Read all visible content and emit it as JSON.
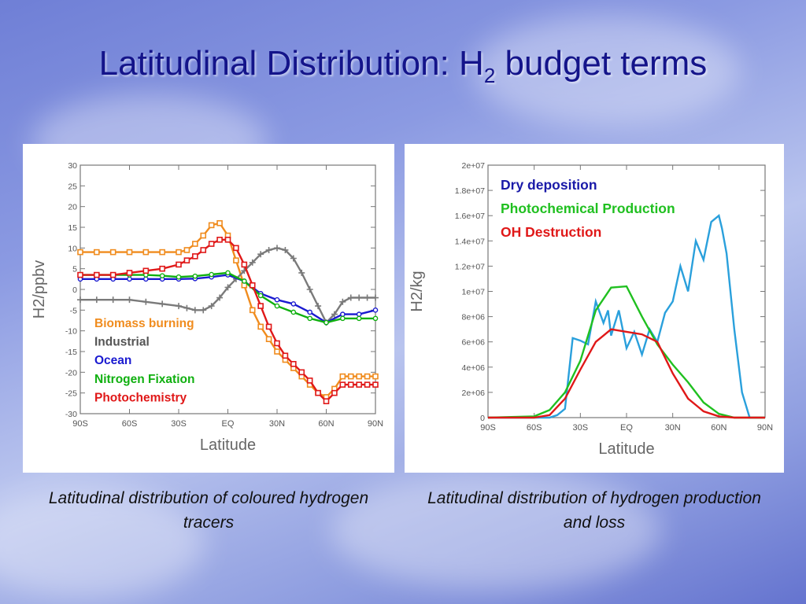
{
  "slide": {
    "title_main": "Latitudinal Distribution: H",
    "title_sub": "2",
    "title_rest": " budget terms"
  },
  "captions": {
    "left": "Latitudinal distribution of coloured hydrogen tracers",
    "right": "Latitudinal distribution of hydrogen production and loss"
  },
  "chart_data": [
    {
      "type": "line",
      "xlabel": "Latitude",
      "ylabel": "H2/ppbv",
      "xlim": [
        -90,
        90
      ],
      "ylim": [
        -30,
        30
      ],
      "xticks": [
        -90,
        -60,
        -30,
        0,
        30,
        60,
        90
      ],
      "xtick_labels": [
        "90S",
        "60S",
        "30S",
        "EQ",
        "30N",
        "60N",
        "90N"
      ],
      "yticks": [
        30,
        25,
        20,
        15,
        10,
        5,
        0,
        -5,
        -10,
        -15,
        -20,
        -25,
        -30
      ],
      "ytick_labels": [
        "30",
        "25",
        "20",
        "15",
        "10",
        "5",
        "0",
        "-5",
        "-10",
        "-15",
        "-20",
        "-25",
        "-30"
      ],
      "legend_position": "lower-left",
      "series": [
        {
          "name": "Biomass burning",
          "color": "#f08c1e",
          "marker": "square",
          "x": [
            -90,
            -80,
            -70,
            -60,
            -50,
            -40,
            -30,
            -25,
            -20,
            -15,
            -10,
            -5,
            0,
            5,
            10,
            15,
            20,
            25,
            30,
            35,
            40,
            45,
            50,
            55,
            60,
            65,
            70,
            75,
            80,
            85,
            90
          ],
          "y": [
            9,
            9,
            9,
            9,
            9,
            9,
            9,
            9.5,
            11,
            13,
            15.5,
            16,
            13,
            7,
            1,
            -5,
            -9,
            -12,
            -15,
            -17,
            -19,
            -21,
            -23,
            -25,
            -26,
            -24,
            -21,
            -21,
            -21,
            -21,
            -21
          ]
        },
        {
          "name": "Industrial",
          "color": "#7a7a7a",
          "marker": "plus",
          "x": [
            -90,
            -80,
            -70,
            -60,
            -50,
            -40,
            -30,
            -25,
            -20,
            -15,
            -10,
            -5,
            0,
            5,
            10,
            15,
            20,
            25,
            30,
            35,
            40,
            45,
            50,
            55,
            60,
            65,
            70,
            75,
            80,
            85,
            90
          ],
          "y": [
            -2.5,
            -2.5,
            -2.5,
            -2.5,
            -3,
            -3.5,
            -4,
            -4.5,
            -5,
            -5,
            -4,
            -2,
            0.5,
            2.5,
            4.5,
            6.5,
            8.5,
            9.5,
            10,
            9.5,
            7.5,
            4,
            0,
            -4,
            -8,
            -6,
            -3,
            -2,
            -2,
            -2,
            -2
          ]
        },
        {
          "name": "Ocean",
          "color": "#1a1ad0",
          "marker": "circle",
          "x": [
            -90,
            -80,
            -70,
            -60,
            -50,
            -40,
            -30,
            -20,
            -10,
            0,
            10,
            20,
            30,
            40,
            50,
            60,
            70,
            80,
            90
          ],
          "y": [
            2.5,
            2.5,
            2.5,
            2.5,
            2.5,
            2.5,
            2.5,
            2.6,
            3,
            3.5,
            2,
            -1,
            -2.5,
            -3.5,
            -5.5,
            -8,
            -6,
            -6,
            -5
          ]
        },
        {
          "name": "Nitrogen Fixation",
          "color": "#10b010",
          "marker": "circle",
          "x": [
            -90,
            -80,
            -70,
            -60,
            -50,
            -40,
            -30,
            -20,
            -10,
            0,
            10,
            20,
            30,
            40,
            50,
            60,
            70,
            80,
            90
          ],
          "y": [
            3.5,
            3.5,
            3.5,
            3.5,
            3.5,
            3.3,
            3,
            3.2,
            3.6,
            4,
            2,
            -1.5,
            -4,
            -5.5,
            -7,
            -8,
            -7,
            -7,
            -7
          ]
        },
        {
          "name": "Photochemistry",
          "color": "#e01818",
          "marker": "square",
          "x": [
            -90,
            -80,
            -70,
            -60,
            -50,
            -40,
            -30,
            -25,
            -20,
            -15,
            -10,
            -5,
            0,
            5,
            10,
            15,
            20,
            25,
            30,
            35,
            40,
            45,
            50,
            55,
            60,
            65,
            70,
            75,
            80,
            85,
            90
          ],
          "y": [
            3.5,
            3.5,
            3.5,
            4,
            4.5,
            5,
            6,
            7,
            8,
            9.5,
            11,
            12,
            12,
            10,
            6,
            1,
            -4,
            -9,
            -13,
            -16,
            -18,
            -20,
            -22,
            -25,
            -27,
            -25,
            -23,
            -23,
            -23,
            -23,
            -23
          ]
        }
      ]
    },
    {
      "type": "line",
      "xlabel": "Latitude",
      "ylabel": "H2/kg",
      "xlim": [
        -90,
        90
      ],
      "ylim": [
        0,
        20000000
      ],
      "xticks": [
        -90,
        -60,
        -30,
        0,
        30,
        60,
        90
      ],
      "xtick_labels": [
        "90S",
        "60S",
        "30S",
        "EQ",
        "30N",
        "60N",
        "90N"
      ],
      "yticks": [
        0,
        2000000,
        4000000,
        6000000,
        8000000,
        10000000,
        12000000,
        14000000,
        16000000,
        18000000,
        20000000
      ],
      "ytick_labels": [
        "0",
        "2e+06",
        "4e+06",
        "6e+06",
        "8e+06",
        "1e+07",
        "1.2e+07",
        "1.4e+07",
        "1.6e+07",
        "1.8e+07",
        "2e+07"
      ],
      "legend_position": "top-right",
      "series": [
        {
          "name": "Dry deposition",
          "color": "#2aa0dc",
          "x": [
            -90,
            -60,
            -50,
            -45,
            -40,
            -35,
            -30,
            -25,
            -20,
            -15,
            -12,
            -10,
            -5,
            0,
            5,
            10,
            15,
            20,
            25,
            30,
            35,
            40,
            45,
            50,
            55,
            60,
            62,
            65,
            70,
            75,
            80,
            90
          ],
          "y": [
            0,
            0,
            0,
            200000,
            700000,
            6300000,
            6100000,
            5800000,
            9200000,
            7500000,
            8500000,
            6500000,
            8500000,
            5500000,
            6800000,
            5000000,
            7000000,
            6000000,
            8300000,
            9200000,
            12000000,
            10000000,
            14000000,
            12500000,
            15500000,
            16000000,
            15000000,
            13000000,
            7000000,
            2000000,
            0,
            0
          ]
        },
        {
          "name": "Photochemical Production",
          "color": "#20c020",
          "x": [
            -90,
            -60,
            -50,
            -40,
            -30,
            -20,
            -10,
            0,
            10,
            20,
            30,
            40,
            50,
            60,
            70,
            80,
            90
          ],
          "y": [
            0,
            100000,
            600000,
            2000000,
            4500000,
            8500000,
            10300000,
            10400000,
            8000000,
            5800000,
            4200000,
            2800000,
            1200000,
            300000,
            0,
            0,
            0
          ]
        },
        {
          "name": "OH Destruction",
          "color": "#e01818",
          "x": [
            -90,
            -60,
            -50,
            -40,
            -30,
            -20,
            -10,
            0,
            10,
            20,
            30,
            40,
            50,
            60,
            70,
            80,
            90
          ],
          "y": [
            0,
            0,
            200000,
            1500000,
            3800000,
            6000000,
            7000000,
            6800000,
            6600000,
            6000000,
            3500000,
            1500000,
            500000,
            100000,
            0,
            0,
            0
          ]
        }
      ]
    }
  ]
}
